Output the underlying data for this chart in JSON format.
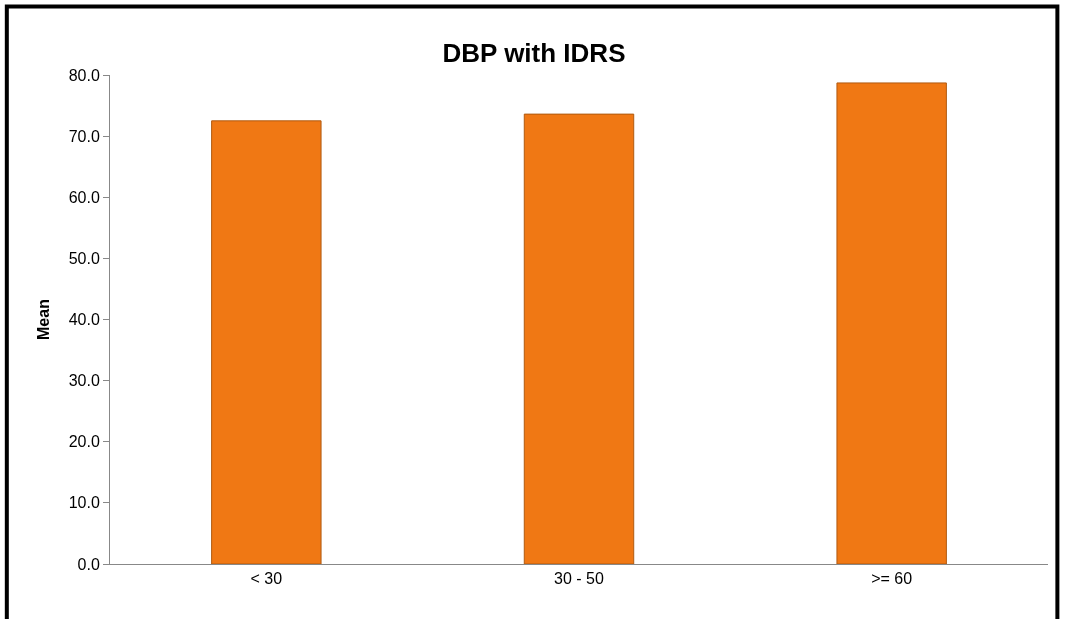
{
  "chart_data": {
    "type": "bar",
    "title": "DBP with IDRS",
    "ylabel": "Mean",
    "categories": [
      "< 30",
      "30 - 50",
      ">= 60"
    ],
    "values": [
      72.5,
      73.6,
      78.7
    ],
    "color": "#f07814",
    "ylim": [
      0,
      80
    ],
    "yticks": [
      {
        "value": 0,
        "label": "0.0"
      },
      {
        "value": 10,
        "label": "10.0"
      },
      {
        "value": 20,
        "label": "20.0"
      },
      {
        "value": 30,
        "label": "30.0"
      },
      {
        "value": 40,
        "label": "40.0"
      },
      {
        "value": 50,
        "label": "50.0"
      },
      {
        "value": 60,
        "label": "60.0"
      },
      {
        "value": 70,
        "label": "70.0"
      },
      {
        "value": 80,
        "label": "80.0"
      }
    ]
  }
}
